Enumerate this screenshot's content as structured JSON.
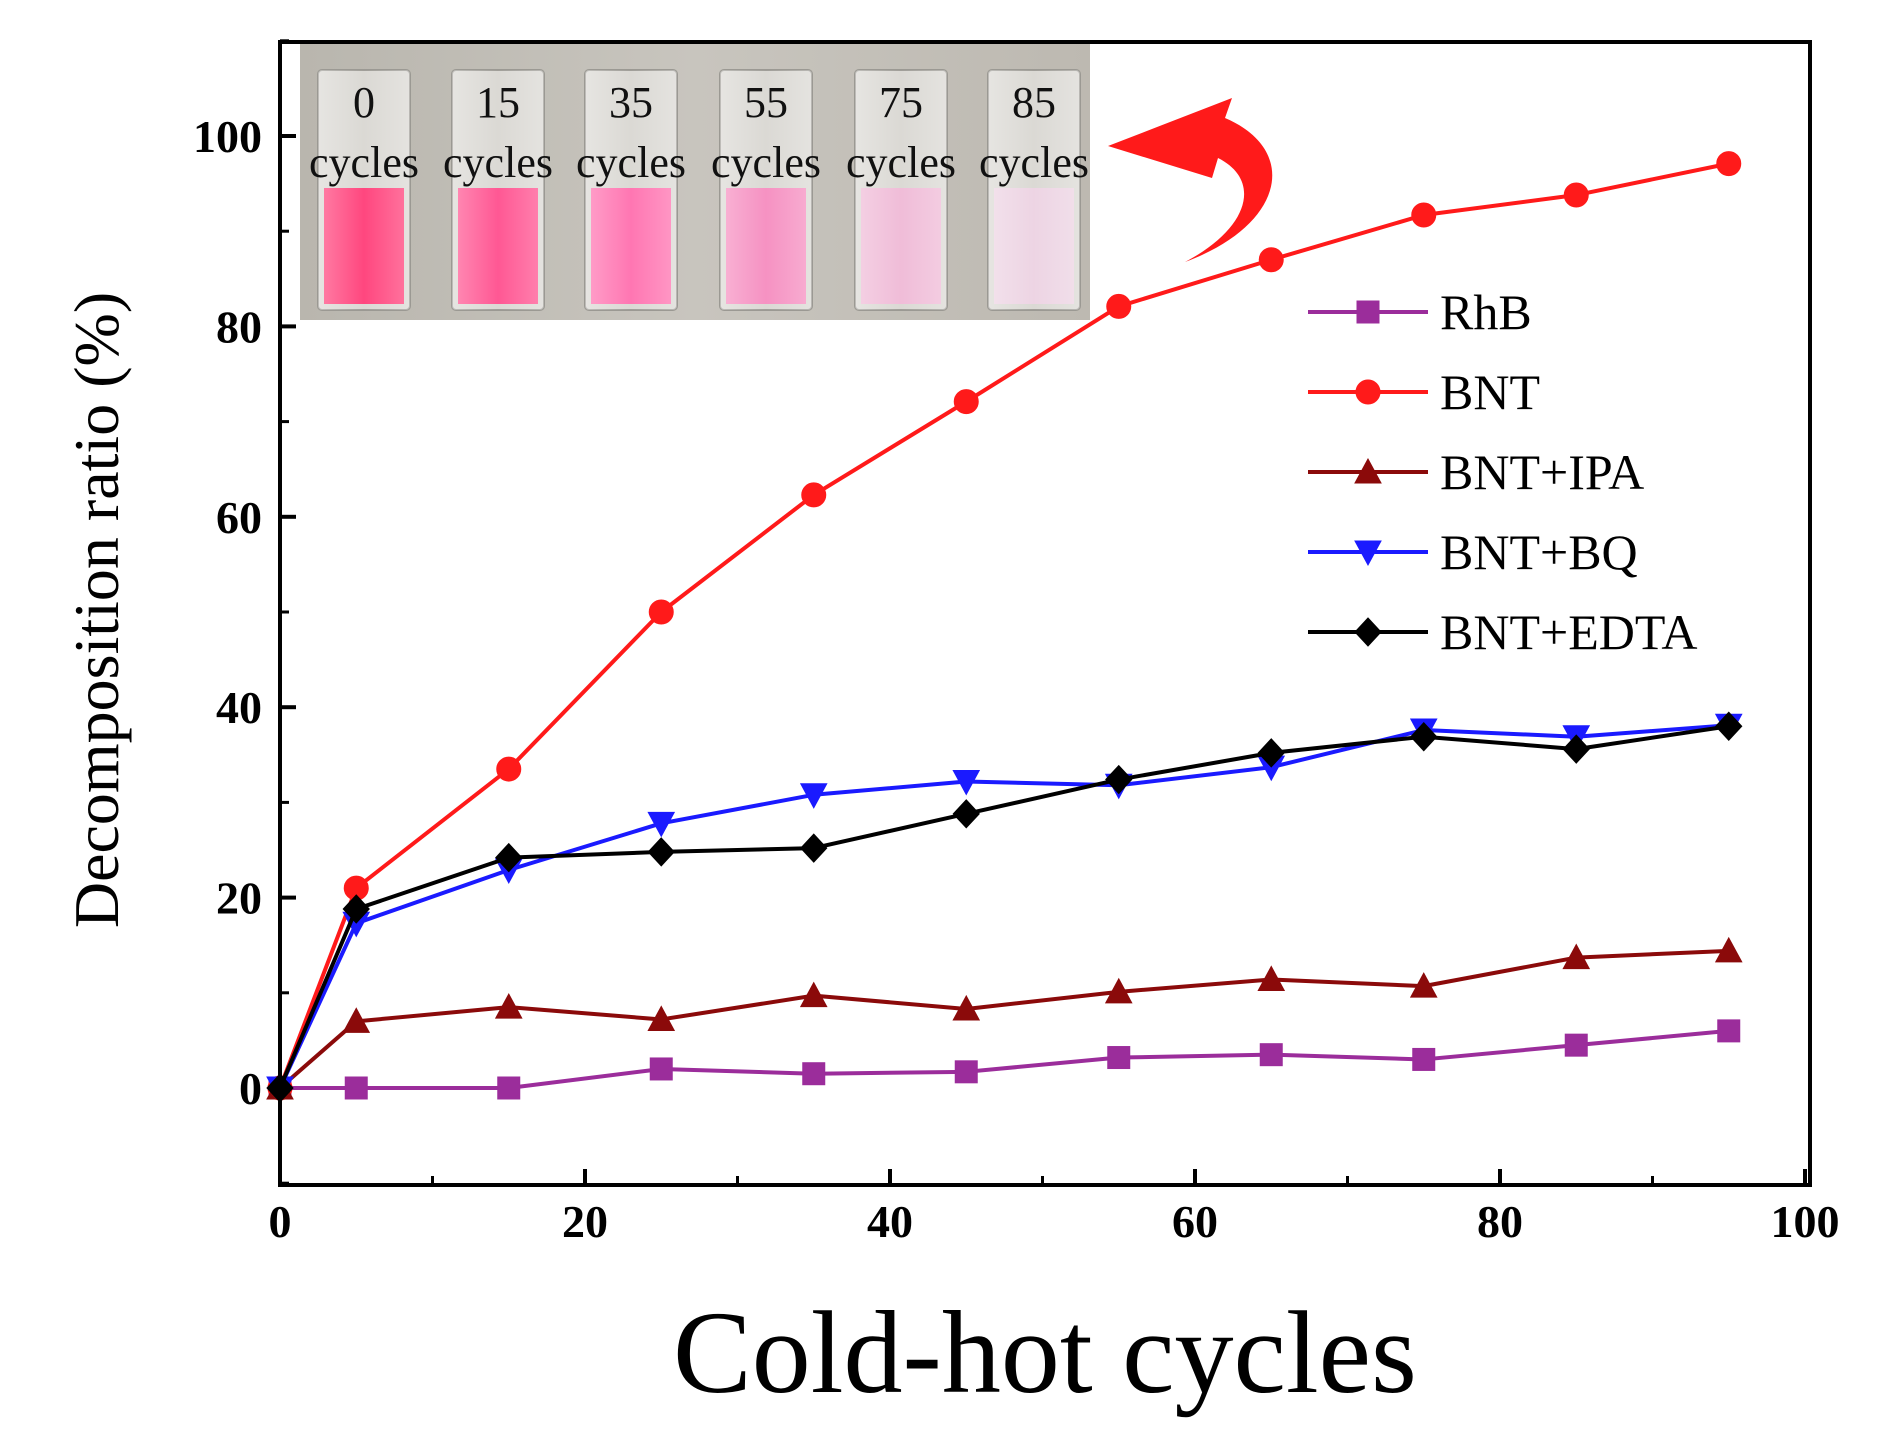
{
  "chart_data": {
    "type": "line",
    "xlabel": "Cold-hot cycles",
    "ylabel": "Decomposition ratio (%)",
    "xlim": [
      0,
      100
    ],
    "ylim": [
      -10,
      110
    ],
    "xticks": [
      0,
      20,
      40,
      60,
      80,
      100
    ],
    "yticks": [
      0,
      20,
      40,
      60,
      80,
      100
    ],
    "grid": false,
    "legend_position": "right",
    "series": [
      {
        "name": "RhB",
        "color": "#9b2d9b",
        "marker": "square",
        "x": [
          0,
          5,
          15,
          25,
          35,
          45,
          55,
          65,
          75,
          85,
          95
        ],
        "y": [
          0,
          0,
          0,
          2,
          1.5,
          1.7,
          3.2,
          3.5,
          3,
          4.5,
          6
        ]
      },
      {
        "name": "BNT",
        "color": "#ff1a1a",
        "marker": "circle",
        "x": [
          0,
          5,
          15,
          25,
          35,
          45,
          55,
          65,
          75,
          85,
          95
        ],
        "y": [
          0,
          21,
          33.5,
          50,
          62.3,
          72.1,
          82.1,
          87,
          91.7,
          93.8,
          97.1
        ]
      },
      {
        "name": "BNT+IPA",
        "color": "#8b0a0a",
        "marker": "triangle-up",
        "x": [
          0,
          5,
          15,
          25,
          35,
          45,
          55,
          65,
          75,
          85,
          95
        ],
        "y": [
          0,
          7,
          8.5,
          7.2,
          9.7,
          8.3,
          10.1,
          11.4,
          10.7,
          13.7,
          14.4
        ]
      },
      {
        "name": "BNT+BQ",
        "color": "#1a1aff",
        "marker": "triangle-down",
        "x": [
          0,
          5,
          15,
          25,
          35,
          45,
          55,
          65,
          75,
          85,
          95
        ],
        "y": [
          0,
          17.3,
          22.9,
          27.8,
          30.8,
          32.2,
          31.8,
          33.7,
          37.6,
          36.9,
          38.1
        ]
      },
      {
        "name": "BNT+EDTA",
        "color": "#000000",
        "marker": "diamond",
        "x": [
          0,
          5,
          15,
          25,
          35,
          45,
          55,
          65,
          75,
          85,
          95
        ],
        "y": [
          0,
          18.8,
          24.2,
          24.8,
          25.2,
          28.8,
          32.4,
          35.2,
          36.9,
          35.6,
          38
        ]
      }
    ],
    "inset": {
      "vials": [
        {
          "number": "0",
          "unit": "cycles",
          "color": "#ff3d78"
        },
        {
          "number": "15",
          "unit": "cycles",
          "color": "#ff4f8e"
        },
        {
          "number": "35",
          "unit": "cycles",
          "color": "#ff6fae"
        },
        {
          "number": "55",
          "unit": "cycles",
          "color": "#f58cbf"
        },
        {
          "number": "75",
          "unit": "cycles",
          "color": "#efb9d6"
        },
        {
          "number": "85",
          "unit": "cycles",
          "color": "#ecd2e2"
        }
      ],
      "arrow_color": "#ff1a1a"
    }
  }
}
